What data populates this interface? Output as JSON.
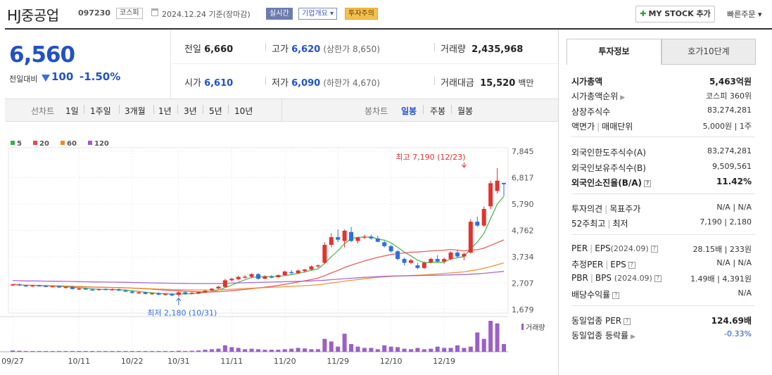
{
  "header": {
    "stock_name": "HJ중공업",
    "stock_code": "097230",
    "market": "코스피",
    "date_text": "2024.12.24 기준(장마감)",
    "badge_live": "실시간",
    "badge_company": "기업개요 ▾",
    "badge_warning": "투자주의",
    "mystock_label": "MY STOCK 추가",
    "quick_order": "빠른주문 ▾"
  },
  "price": {
    "current": "6,560",
    "prev_label": "전일대비",
    "change": "100",
    "rate": "-1.50%"
  },
  "quote": {
    "prev_close_label": "전일",
    "prev_close": "6,660",
    "high_label": "고가",
    "high": "6,620",
    "upper_limit": "(상한가 8,650)",
    "volume_label": "거래량",
    "volume": "2,435,968",
    "open_label": "시가",
    "open": "6,610",
    "low_label": "저가",
    "low": "6,090",
    "lower_limit": "(하한가 4,670)",
    "amount_label": "거래대금",
    "amount": "15,520",
    "amount_unit": "백만"
  },
  "periods": {
    "line_label": "선차트",
    "line_options": [
      "1일",
      "1주일",
      "3개월",
      "1년",
      "3년",
      "5년",
      "10년"
    ],
    "candle_label": "봉차트",
    "candle_options": [
      "일봉",
      "주봉",
      "월봉"
    ],
    "active": "일봉"
  },
  "chart_data": {
    "type": "candlestick",
    "legend": [
      {
        "name": "5",
        "color": "#3fae49"
      },
      {
        "name": "20",
        "color": "#e84a4a"
      },
      {
        "name": "60",
        "color": "#f0882a"
      },
      {
        "name": "120",
        "color": "#9b5ccf"
      }
    ],
    "y_ticks": [
      7845,
      6817,
      5790,
      4762,
      3734,
      2707,
      1679
    ],
    "y_tick_labels": [
      "7,845",
      "6,817",
      "5,790",
      "4,762",
      "3,734",
      "2,707",
      "1,679"
    ],
    "ylim": [
      1679,
      7845
    ],
    "x_tick_labels": [
      "09/27",
      "10/11",
      "10/22",
      "10/31",
      "11/11",
      "11/20",
      "11/29",
      "12/10",
      "12/19"
    ],
    "x_tick_index": [
      0,
      10,
      18,
      25,
      33,
      41,
      49,
      57,
      65
    ],
    "annotation_high": "최고 7,190 (12/23)",
    "annotation_low": "최저 2,180 (10/31)",
    "high_index": 68,
    "high_value": 7190,
    "low_index": 25,
    "low_value": 2180,
    "volume_label": "거래량",
    "candles": [
      [
        2620,
        2680,
        2600,
        2660
      ],
      [
        2660,
        2690,
        2600,
        2620
      ],
      [
        2620,
        2650,
        2570,
        2600
      ],
      [
        2600,
        2640,
        2560,
        2620
      ],
      [
        2620,
        2650,
        2580,
        2600
      ],
      [
        2600,
        2640,
        2550,
        2570
      ],
      [
        2570,
        2620,
        2540,
        2590
      ],
      [
        2590,
        2620,
        2520,
        2540
      ],
      [
        2540,
        2580,
        2500,
        2560
      ],
      [
        2560,
        2600,
        2460,
        2480
      ],
      [
        2480,
        2530,
        2440,
        2500
      ],
      [
        2500,
        2540,
        2450,
        2460
      ],
      [
        2460,
        2500,
        2420,
        2440
      ],
      [
        2440,
        2500,
        2410,
        2480
      ],
      [
        2480,
        2510,
        2430,
        2450
      ],
      [
        2450,
        2500,
        2420,
        2470
      ],
      [
        2470,
        2500,
        2400,
        2420
      ],
      [
        2420,
        2460,
        2360,
        2380
      ],
      [
        2380,
        2420,
        2300,
        2330
      ],
      [
        2330,
        2380,
        2280,
        2350
      ],
      [
        2350,
        2380,
        2260,
        2290
      ],
      [
        2290,
        2340,
        2240,
        2320
      ],
      [
        2320,
        2350,
        2240,
        2260
      ],
      [
        2260,
        2310,
        2220,
        2290
      ],
      [
        2290,
        2330,
        2200,
        2230
      ],
      [
        2250,
        2400,
        2180,
        2350
      ],
      [
        2350,
        2380,
        2260,
        2290
      ],
      [
        2290,
        2360,
        2270,
        2330
      ],
      [
        2300,
        2380,
        2280,
        2360
      ],
      [
        2340,
        2440,
        2320,
        2410
      ],
      [
        2420,
        2520,
        2390,
        2490
      ],
      [
        2500,
        2600,
        2470,
        2570
      ],
      [
        2560,
        2880,
        2540,
        2820
      ],
      [
        2820,
        2920,
        2770,
        2880
      ],
      [
        2860,
        3000,
        2820,
        2950
      ],
      [
        2920,
        3020,
        2880,
        2960
      ],
      [
        2960,
        3100,
        2900,
        3060
      ],
      [
        3060,
        3100,
        2840,
        2880
      ],
      [
        2880,
        3010,
        2860,
        2980
      ],
      [
        2960,
        3020,
        2900,
        2950
      ],
      [
        2940,
        3050,
        2920,
        3020
      ],
      [
        3020,
        3200,
        3000,
        3160
      ],
      [
        3140,
        3220,
        3060,
        3100
      ],
      [
        3100,
        3240,
        3080,
        3200
      ],
      [
        3180,
        3260,
        3120,
        3240
      ],
      [
        3240,
        3400,
        3200,
        3360
      ],
      [
        3360,
        3440,
        3300,
        3400
      ],
      [
        3500,
        4300,
        3450,
        4200
      ],
      [
        4200,
        4650,
        4100,
        4500
      ],
      [
        4500,
        4800,
        4300,
        4400
      ],
      [
        4350,
        4800,
        4100,
        4750
      ],
      [
        4700,
        4900,
        4300,
        4350
      ],
      [
        4350,
        4500,
        4250,
        4480
      ],
      [
        4500,
        4600,
        4420,
        4520
      ],
      [
        4520,
        4600,
        4400,
        4450
      ],
      [
        4450,
        4550,
        4300,
        4320
      ],
      [
        4300,
        4350,
        4100,
        4150
      ],
      [
        4150,
        4200,
        3900,
        3950
      ],
      [
        3950,
        4000,
        3600,
        3650
      ],
      [
        3650,
        3700,
        3400,
        3500
      ],
      [
        3500,
        3650,
        3450,
        3600
      ],
      [
        3400,
        3500,
        3250,
        3300
      ],
      [
        3300,
        3550,
        3250,
        3500
      ],
      [
        3520,
        3700,
        3480,
        3650
      ],
      [
        3650,
        3800,
        3500,
        3550
      ],
      [
        3550,
        3700,
        3450,
        3650
      ],
      [
        3650,
        3950,
        3600,
        3900
      ],
      [
        3900,
        4000,
        3700,
        3750
      ],
      [
        3750,
        3900,
        3600,
        3850
      ],
      [
        3900,
        5200,
        3850,
        5100
      ],
      [
        5100,
        5300,
        4900,
        4950
      ],
      [
        4950,
        5700,
        4900,
        5600
      ],
      [
        5700,
        6700,
        5600,
        6600
      ],
      [
        6300,
        7190,
        6200,
        6700
      ],
      [
        6610,
        6620,
        6090,
        6560
      ]
    ],
    "volumes": [
      0.5,
      0.4,
      0.3,
      0.3,
      0.3,
      0.3,
      0.3,
      0.3,
      0.3,
      0.3,
      0.3,
      0.3,
      0.3,
      0.3,
      0.3,
      0.3,
      0.3,
      0.3,
      0.3,
      0.3,
      0.3,
      0.3,
      0.3,
      0.3,
      0.3,
      0.4,
      0.3,
      0.4,
      0.5,
      0.8,
      1.0,
      1.2,
      2.5,
      1.8,
      1.5,
      1.0,
      1.2,
      1.0,
      0.8,
      0.8,
      0.8,
      1.0,
      1.2,
      1.5,
      1.3,
      1.0,
      1.0,
      5.0,
      4.0,
      2.0,
      7.0,
      3.0,
      2.0,
      1.5,
      1.5,
      1.0,
      2.5,
      2.0,
      1.8,
      1.2,
      1.0,
      1.5,
      1.0,
      1.2,
      2.0,
      1.5,
      1.5,
      2.5,
      1.5,
      2.0,
      7.5,
      5.0,
      12.0,
      11.0,
      3.0
    ]
  },
  "invest_info": {
    "tab_active": "투자정보",
    "tab_other": "호가10단계",
    "market_cap_label": "시가총액",
    "market_cap": "5,463억원",
    "rank_label": "시가총액순위",
    "rank": "코스피 360위",
    "shares_label": "상장주식수",
    "shares": "83,274,281",
    "face_label": "액면가",
    "trade_unit_label": "매매단위",
    "face_trade": "5,000원 | 1주",
    "foreign_limit_label": "외국인한도주식수(A)",
    "foreign_limit": "83,274,281",
    "foreign_hold_label": "외국인보유주식수(B)",
    "foreign_hold": "9,509,561",
    "foreign_ratio_label": "외국인소진율(B/A)",
    "foreign_ratio": "11.42%",
    "opinion_label": "투자의견",
    "target_label": "목표주가",
    "opinion_target": "N/A | N/A",
    "w52_label": "52주최고",
    "w52_low_label": "최저",
    "w52": "7,190 | 2,180",
    "per_label": "PER",
    "eps_label": "EPS",
    "per_year": "(2024.09)",
    "per_eps": "28.15배 | 233원",
    "est_per_label": "추정PER",
    "est_eps_label": "EPS",
    "est_per_eps": "N/A | N/A",
    "pbr_label": "PBR",
    "bps_label": "BPS",
    "pbr_year": "(2024.09)",
    "pbr_bps": "1.49배 | 4,391원",
    "div_label": "배당수익률",
    "div": "N/A",
    "sector_per_label": "동일업종 PER",
    "sector_per": "124.69배",
    "sector_rate_label": "동일업종 등락률",
    "sector_rate": "-0.33%"
  }
}
